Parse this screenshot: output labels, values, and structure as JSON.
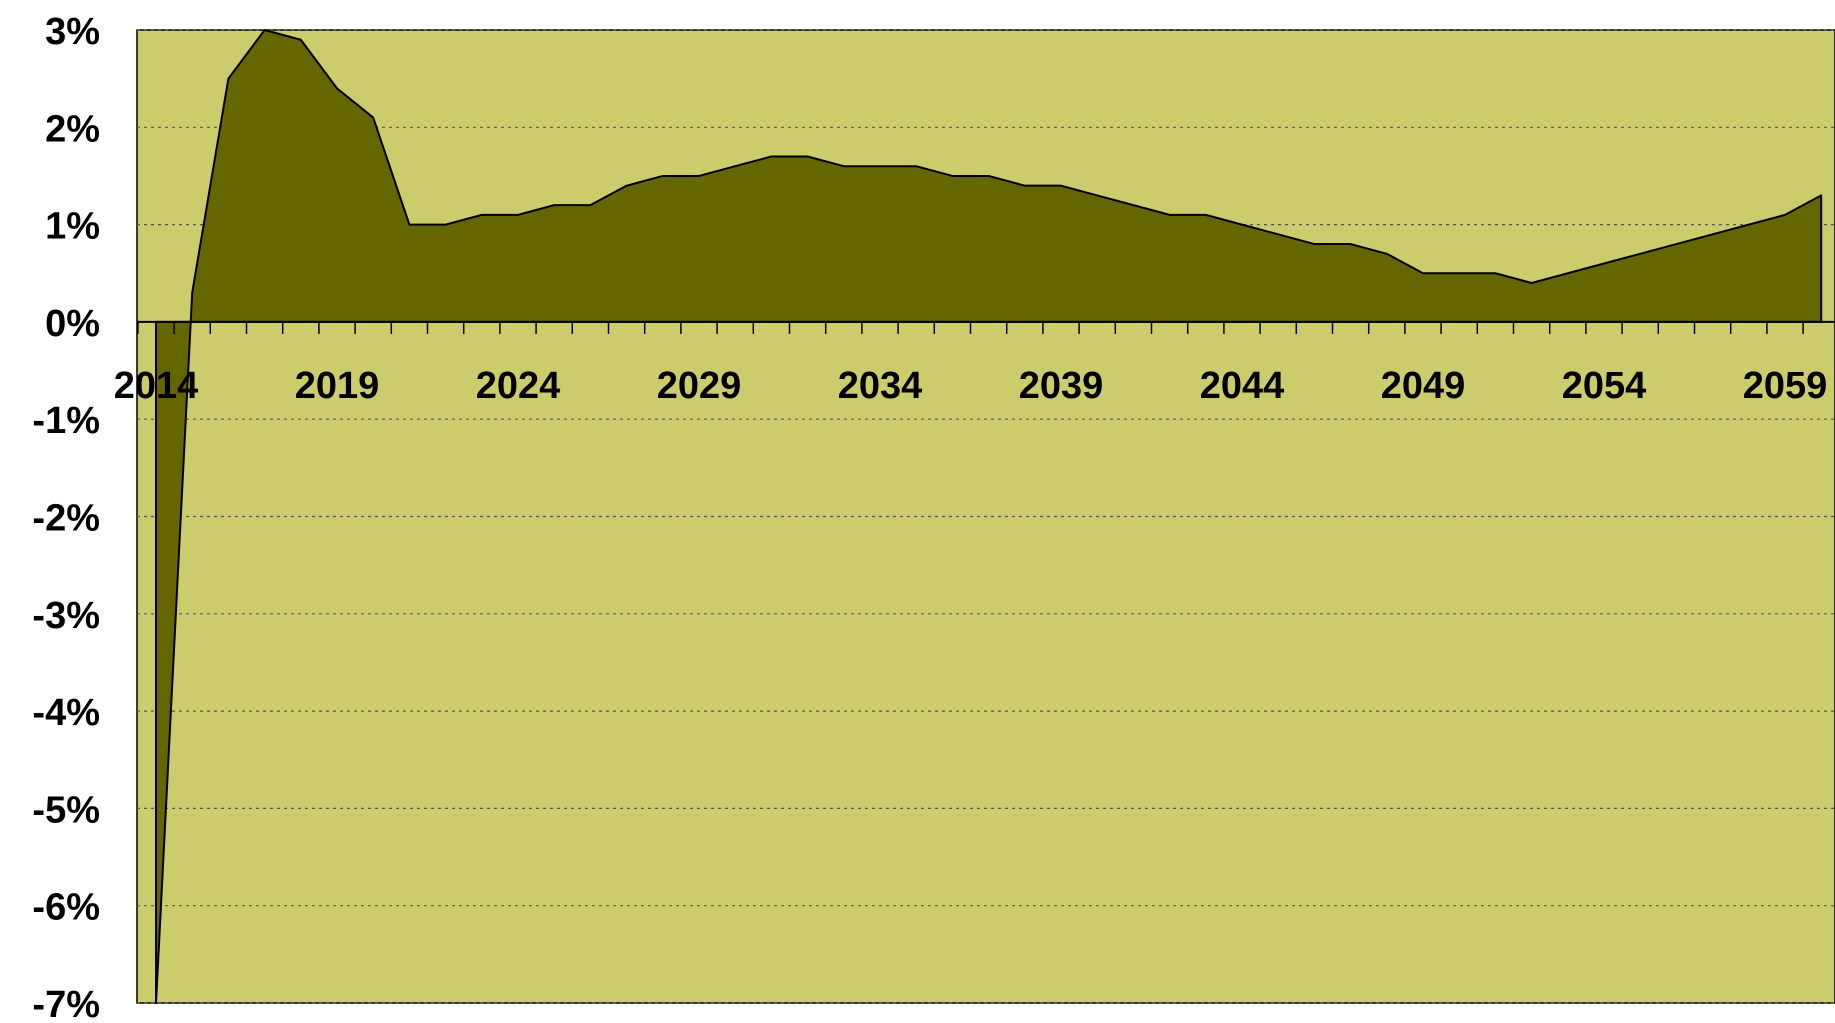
{
  "colors": {
    "plot_background": "#CCCC6C",
    "area_fill": "#666600",
    "area_stroke": "#000000",
    "gridline": "#555555"
  },
  "chart_data": {
    "type": "area",
    "title": "",
    "xlabel": "",
    "ylabel": "",
    "x": [
      2014,
      2015,
      2016,
      2017,
      2018,
      2019,
      2020,
      2021,
      2022,
      2023,
      2024,
      2025,
      2026,
      2027,
      2028,
      2029,
      2030,
      2031,
      2032,
      2033,
      2034,
      2035,
      2036,
      2037,
      2038,
      2039,
      2040,
      2041,
      2042,
      2043,
      2044,
      2045,
      2046,
      2047,
      2048,
      2049,
      2050,
      2051,
      2052,
      2053,
      2054,
      2055,
      2056,
      2057,
      2058,
      2059,
      2060
    ],
    "values": [
      -7.0,
      0.3,
      2.5,
      3.0,
      2.9,
      2.4,
      2.1,
      1.0,
      1.0,
      1.1,
      1.1,
      1.2,
      1.2,
      1.4,
      1.5,
      1.5,
      1.6,
      1.7,
      1.7,
      1.6,
      1.6,
      1.6,
      1.5,
      1.5,
      1.4,
      1.4,
      1.3,
      1.2,
      1.1,
      1.1,
      1.0,
      0.9,
      0.8,
      0.8,
      0.7,
      0.5,
      0.5,
      0.5,
      0.4,
      0.5,
      0.6,
      0.7,
      0.8,
      0.9,
      1.0,
      1.1,
      1.3
    ],
    "unit": "%",
    "xlim": [
      2014,
      2060
    ],
    "ylim": [
      -7,
      3
    ],
    "y_ticks": [
      3,
      2,
      1,
      0,
      -1,
      -2,
      -3,
      -4,
      -5,
      -6,
      -7
    ],
    "y_tick_labels": [
      "3%",
      "2%",
      "1%",
      "0%",
      "-1%",
      "-2%",
      "-3%",
      "-4%",
      "-5%",
      "-6%",
      "-7%"
    ],
    "x_tick_labels": [
      "2014",
      "2019",
      "2024",
      "2029",
      "2034",
      "2039",
      "2044",
      "2049",
      "2054",
      "2059"
    ],
    "x_tick_label_years": [
      2014,
      2019,
      2024,
      2029,
      2034,
      2039,
      2044,
      2049,
      2054,
      2059
    ],
    "grid": true,
    "legend": "none"
  }
}
